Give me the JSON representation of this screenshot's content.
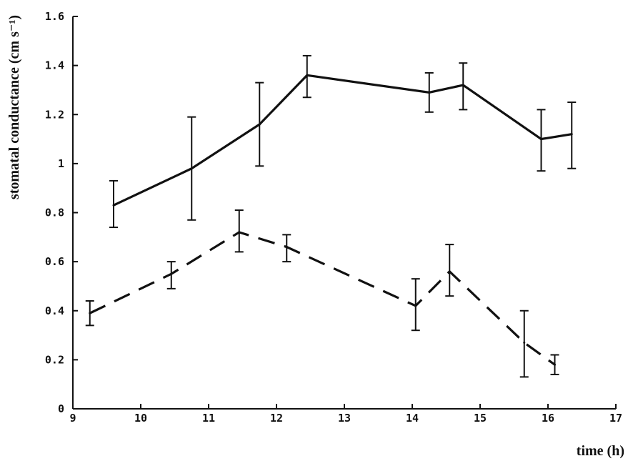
{
  "chart_data": {
    "type": "line",
    "title": "",
    "xlabel": "time (h)",
    "ylabel": "stomatal conductance (cm s⁻¹)",
    "xlim": [
      9,
      17
    ],
    "ylim": [
      0,
      1.6
    ],
    "x_ticks": [
      9,
      10,
      11,
      12,
      13,
      14,
      15,
      16,
      17
    ],
    "y_ticks": [
      0,
      0.2,
      0.4,
      0.6,
      0.8,
      1,
      1.2,
      1.4,
      1.6
    ],
    "x_tick_labels": [
      "9",
      "10",
      "11",
      "12",
      "13",
      "14",
      "15",
      "16",
      "17"
    ],
    "y_tick_labels": [
      "0",
      "0.2",
      "0.4",
      "0.6",
      "0.8",
      "1",
      "1.2",
      "1.4",
      "1.6"
    ],
    "grid": false,
    "legend": "none",
    "series": [
      {
        "line_style": "solid",
        "color": "#111111",
        "points": [
          {
            "x": 9.6,
            "y": 0.83,
            "err_low": 0.74,
            "err_high": 0.93
          },
          {
            "x": 10.75,
            "y": 0.98,
            "err_low": 0.77,
            "err_high": 1.19
          },
          {
            "x": 11.75,
            "y": 1.16,
            "err_low": 0.99,
            "err_high": 1.33
          },
          {
            "x": 12.45,
            "y": 1.36,
            "err_low": 1.27,
            "err_high": 1.44
          },
          {
            "x": 14.25,
            "y": 1.29,
            "err_low": 1.21,
            "err_high": 1.37
          },
          {
            "x": 14.75,
            "y": 1.32,
            "err_low": 1.22,
            "err_high": 1.41
          },
          {
            "x": 15.9,
            "y": 1.1,
            "err_low": 0.97,
            "err_high": 1.22
          },
          {
            "x": 16.35,
            "y": 1.12,
            "err_low": 0.98,
            "err_high": 1.25
          }
        ]
      },
      {
        "line_style": "dashed",
        "color": "#111111",
        "points": [
          {
            "x": 9.25,
            "y": 0.39,
            "err_low": 0.34,
            "err_high": 0.44
          },
          {
            "x": 10.45,
            "y": 0.55,
            "err_low": 0.49,
            "err_high": 0.6
          },
          {
            "x": 11.45,
            "y": 0.72,
            "err_low": 0.64,
            "err_high": 0.81
          },
          {
            "x": 12.15,
            "y": 0.66,
            "err_low": 0.6,
            "err_high": 0.71
          },
          {
            "x": 14.05,
            "y": 0.42,
            "err_low": 0.32,
            "err_high": 0.53
          },
          {
            "x": 14.55,
            "y": 0.56,
            "err_low": 0.46,
            "err_high": 0.67
          },
          {
            "x": 15.65,
            "y": 0.27,
            "err_low": 0.13,
            "err_high": 0.4
          },
          {
            "x": 16.1,
            "y": 0.18,
            "err_low": 0.14,
            "err_high": 0.22
          }
        ]
      }
    ]
  }
}
